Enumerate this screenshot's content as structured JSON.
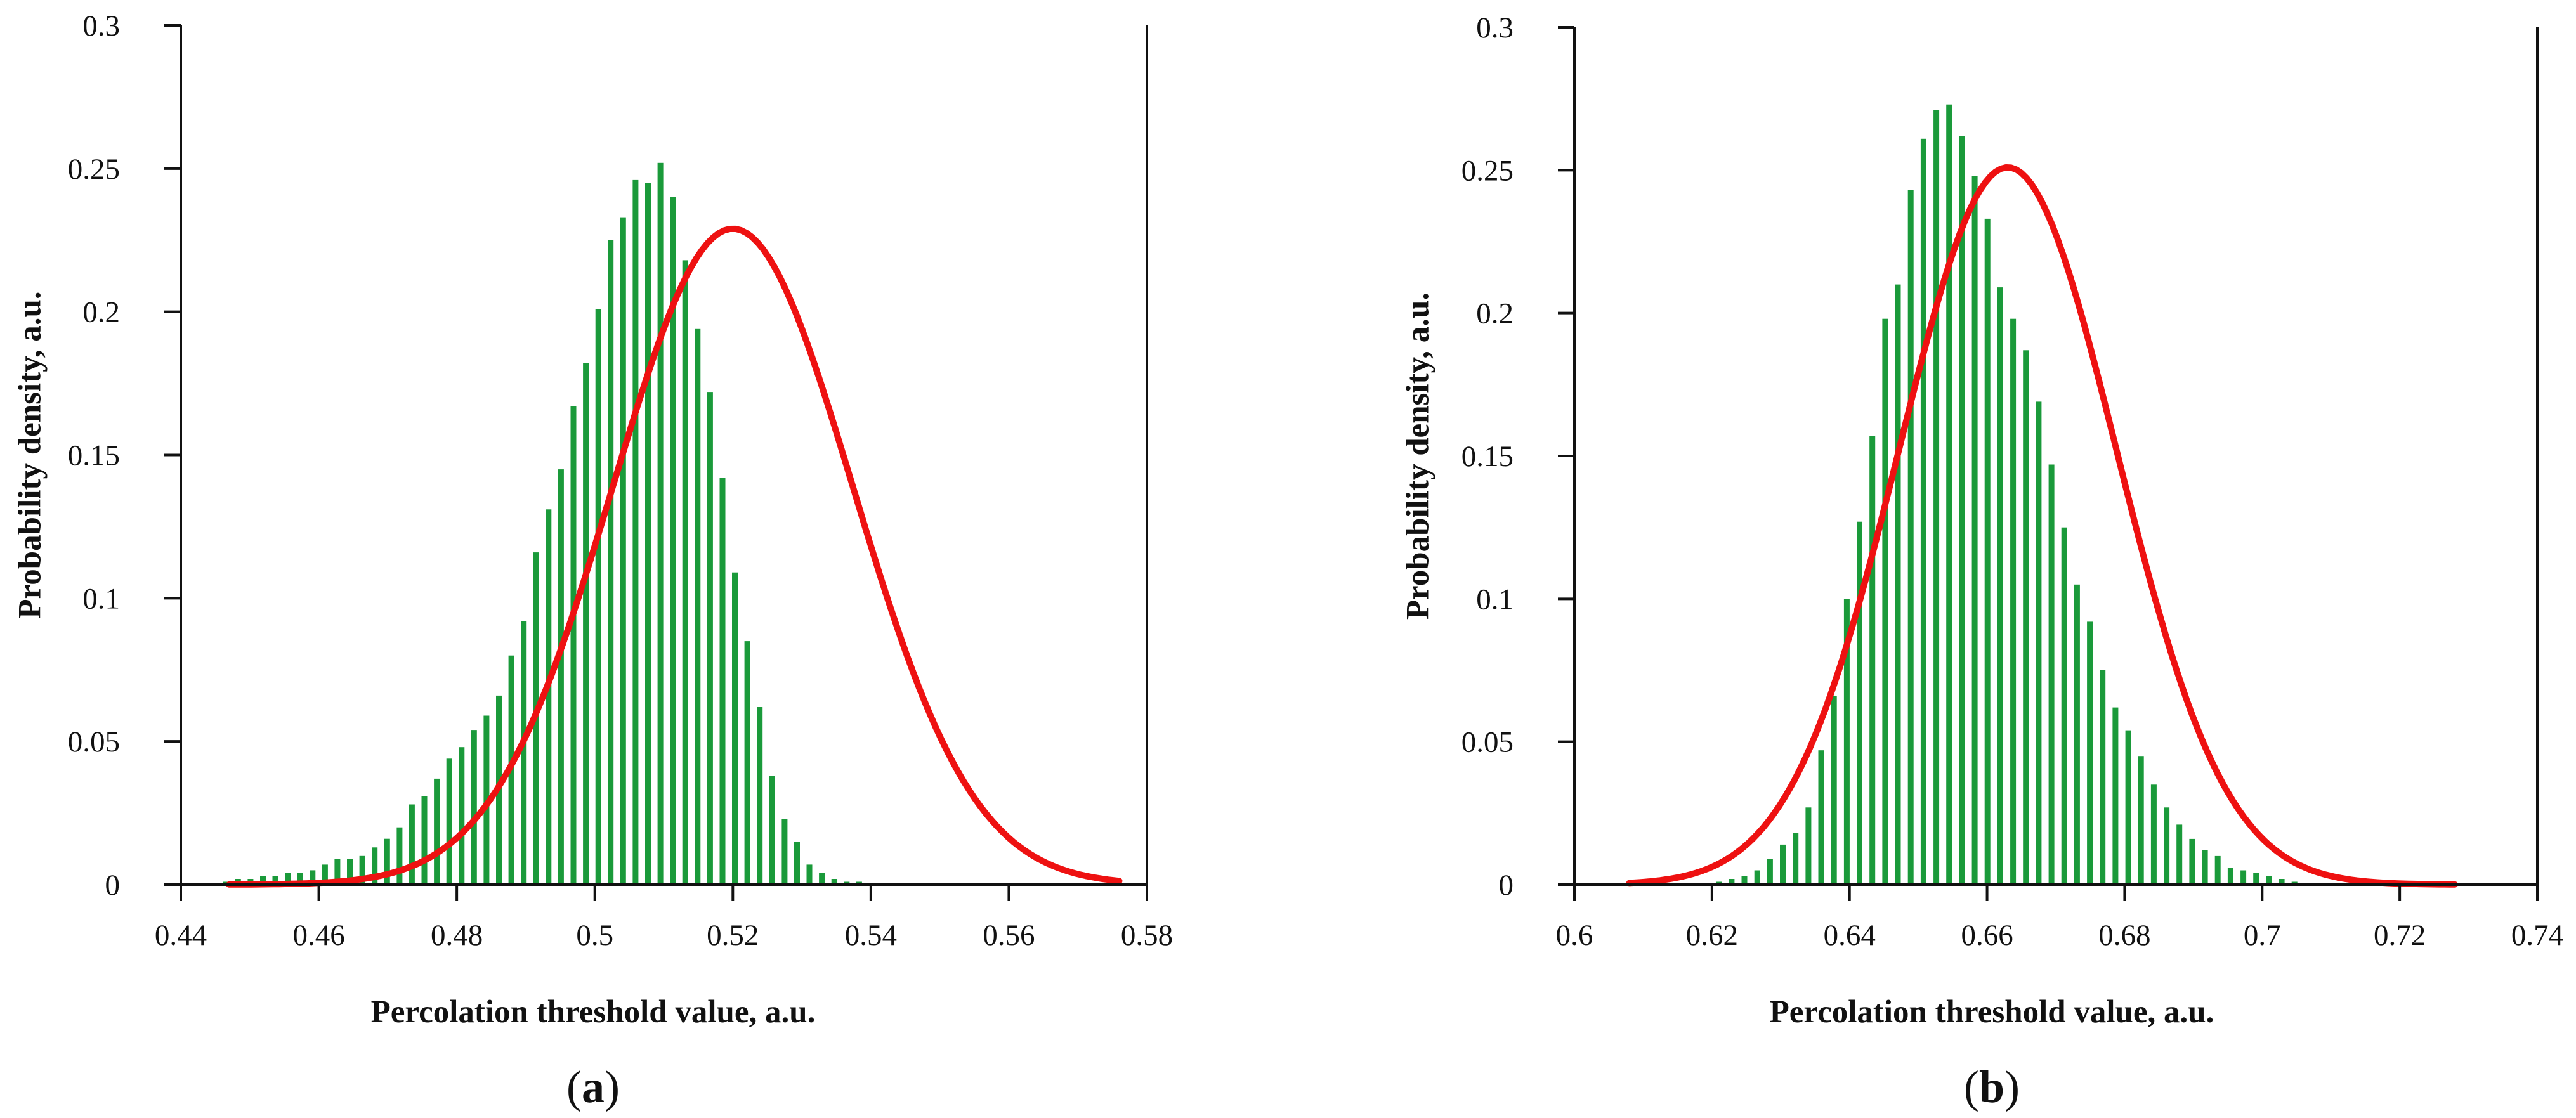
{
  "colors": {
    "bar": "#1a9a3a",
    "curve": "#ee1111",
    "axis": "#111111"
  },
  "chart_data": [
    {
      "type": "bar",
      "panel_label": "(a)",
      "panel_letter": "a",
      "title": "",
      "xlabel": "Percolation threshold value, a.u.",
      "ylabel": "Probability density, a.u.",
      "xlim": [
        0.44,
        0.58
      ],
      "ylim": [
        0,
        0.3
      ],
      "xticks": [
        {
          "v": 0.44,
          "label": "0.44"
        },
        {
          "v": 0.46,
          "label": "0.46"
        },
        {
          "v": 0.48,
          "label": "0.48"
        },
        {
          "v": 0.5,
          "label": "0.5"
        },
        {
          "v": 0.52,
          "label": "0.52"
        },
        {
          "v": 0.54,
          "label": "0.54"
        },
        {
          "v": 0.56,
          "label": "0.56"
        },
        {
          "v": 0.58,
          "label": "0.58"
        }
      ],
      "yticks": [
        {
          "v": 0,
          "label": "0"
        },
        {
          "v": 0.05,
          "label": "0.05"
        },
        {
          "v": 0.1,
          "label": "0.1"
        },
        {
          "v": 0.15,
          "label": "0.15"
        },
        {
          "v": 0.2,
          "label": "0.2"
        },
        {
          "v": 0.25,
          "label": "0.25"
        },
        {
          "v": 0.3,
          "label": "0.3"
        }
      ],
      "bar_x_start": 0.4465,
      "bar_x_step": 0.0018,
      "bar_values": [
        0.001,
        0.002,
        0.002,
        0.003,
        0.003,
        0.004,
        0.004,
        0.005,
        0.007,
        0.009,
        0.009,
        0.01,
        0.013,
        0.016,
        0.02,
        0.028,
        0.031,
        0.037,
        0.044,
        0.048,
        0.054,
        0.059,
        0.066,
        0.08,
        0.092,
        0.116,
        0.131,
        0.145,
        0.167,
        0.182,
        0.201,
        0.225,
        0.233,
        0.246,
        0.245,
        0.252,
        0.24,
        0.218,
        0.194,
        0.172,
        0.142,
        0.109,
        0.085,
        0.062,
        0.038,
        0.023,
        0.015,
        0.007,
        0.004,
        0.002,
        0.001,
        0.001
      ],
      "fit_curve": {
        "name": "Normal fit",
        "mean": 0.52,
        "peak": 0.229,
        "sigma": 0.0174,
        "x_range": [
          0.447,
          0.576
        ]
      }
    },
    {
      "type": "bar",
      "panel_label": "(b)",
      "panel_letter": "b",
      "title": "",
      "xlabel": "Percolation threshold value, a.u.",
      "ylabel": "Probability density, a.u.",
      "xlim": [
        0.6,
        0.74
      ],
      "ylim": [
        0,
        0.3
      ],
      "xticks": [
        {
          "v": 0.6,
          "label": "0.6"
        },
        {
          "v": 0.62,
          "label": "0.62"
        },
        {
          "v": 0.64,
          "label": "0.64"
        },
        {
          "v": 0.66,
          "label": "0.66"
        },
        {
          "v": 0.68,
          "label": "0.68"
        },
        {
          "v": 0.7,
          "label": "0.7"
        },
        {
          "v": 0.72,
          "label": "0.72"
        },
        {
          "v": 0.74,
          "label": "0.74"
        }
      ],
      "yticks": [
        {
          "v": 0,
          "label": "0"
        },
        {
          "v": 0.05,
          "label": "0.05"
        },
        {
          "v": 0.1,
          "label": "0.1"
        },
        {
          "v": 0.15,
          "label": "0.15"
        },
        {
          "v": 0.2,
          "label": "0.2"
        },
        {
          "v": 0.25,
          "label": "0.25"
        },
        {
          "v": 0.3,
          "label": "0.3"
        }
      ],
      "bar_x_start": 0.621,
      "bar_x_step": 0.00186,
      "bar_values": [
        0.001,
        0.002,
        0.003,
        0.005,
        0.009,
        0.014,
        0.018,
        0.027,
        0.047,
        0.066,
        0.1,
        0.127,
        0.157,
        0.198,
        0.21,
        0.243,
        0.261,
        0.271,
        0.273,
        0.262,
        0.248,
        0.233,
        0.209,
        0.198,
        0.187,
        0.169,
        0.147,
        0.125,
        0.105,
        0.092,
        0.075,
        0.062,
        0.054,
        0.045,
        0.035,
        0.027,
        0.021,
        0.016,
        0.012,
        0.01,
        0.006,
        0.005,
        0.004,
        0.003,
        0.002,
        0.001
      ],
      "fit_curve": {
        "name": "Normal fit",
        "mean": 0.663,
        "peak": 0.251,
        "sigma": 0.0158,
        "x_range": [
          0.608,
          0.728
        ]
      }
    }
  ]
}
